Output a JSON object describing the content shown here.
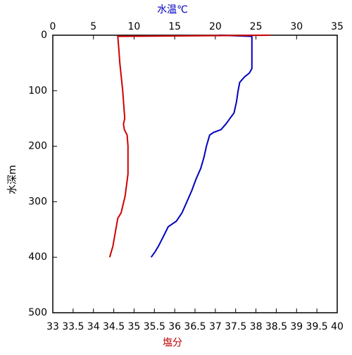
{
  "chart_data": {
    "type": "line",
    "ylabel": "水深m",
    "ylim": [
      0,
      500
    ],
    "yticks": [
      0,
      100,
      200,
      300,
      400,
      500
    ],
    "y_inverted": true,
    "xlabel": "塩分",
    "xlabel_color": "#c00000",
    "xlim": [
      33,
      40
    ],
    "xticks": [
      33,
      33.5,
      34,
      34.5,
      35,
      35.5,
      36,
      36.5,
      37,
      37.5,
      38,
      38.5,
      39,
      39.5,
      40
    ],
    "x2label": "水温℃",
    "x2label_color": "#0000c0",
    "x2lim": [
      0,
      35
    ],
    "x2ticks": [
      0,
      5,
      10,
      15,
      20,
      25,
      30,
      35
    ],
    "series": [
      {
        "color": "#0000c0",
        "axis": "x2",
        "depth": [
          0,
          2,
          60,
          68,
          75,
          85,
          100,
          120,
          140,
          150,
          160,
          170,
          175,
          180,
          200,
          220,
          240,
          260,
          280,
          300,
          320,
          335,
          345,
          360,
          380,
          390,
          400
        ],
        "values": [
          20.5,
          24.5,
          24.5,
          24.2,
          23.6,
          23.0,
          22.8,
          22.6,
          22.3,
          21.8,
          21.3,
          20.7,
          19.8,
          19.3,
          18.9,
          18.6,
          18.2,
          17.6,
          17.1,
          16.5,
          15.9,
          15.2,
          14.2,
          13.7,
          13.0,
          12.6,
          12.1
        ]
      },
      {
        "color": "#d00000",
        "axis": "x",
        "depth": [
          0,
          2,
          20,
          50,
          100,
          150,
          160,
          170,
          180,
          200,
          250,
          290,
          320,
          330,
          350,
          380,
          400
        ],
        "values": [
          38.35,
          34.6,
          34.62,
          34.65,
          34.72,
          34.77,
          34.74,
          34.76,
          34.83,
          34.85,
          34.85,
          34.78,
          34.68,
          34.6,
          34.55,
          34.48,
          34.4
        ]
      }
    ]
  }
}
